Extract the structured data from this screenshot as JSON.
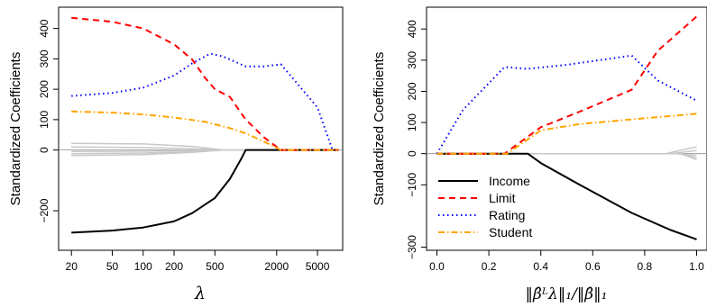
{
  "colors": {
    "income": "#000000",
    "limit": "#FF0000",
    "rating": "#0000FF",
    "student": "#FFA500",
    "other": "#C8C8C8",
    "axis": "#000000",
    "zero_line": "#8C8C8C"
  },
  "chart_data": [
    {
      "type": "line",
      "xlabel": "λ",
      "ylabel": "Standardized Coefficients",
      "x_scale": "log",
      "xlim": [
        15,
        8800
      ],
      "ylim": [
        -330,
        470
      ],
      "x_ticks": [
        20,
        50,
        100,
        200,
        500,
        2000,
        5000
      ],
      "x_tick_labels": [
        "20",
        "50",
        "100",
        "200",
        "500",
        "2000",
        "5000"
      ],
      "y_ticks": [
        -200,
        0,
        100,
        200,
        300,
        400
      ],
      "y_tick_labels": [
        "−200",
        "0",
        "100",
        "200",
        "300",
        "400"
      ],
      "grid": false,
      "legend": "none",
      "series": [
        {
          "name": "Income",
          "style": "solid",
          "x": [
            20,
            50,
            100,
            200,
            300,
            500,
            700,
            900,
            1000,
            8000
          ],
          "y": [
            -272,
            -265,
            -255,
            -235,
            -208,
            -158,
            -95,
            -30,
            0,
            0
          ]
        },
        {
          "name": "Limit",
          "style": "dashed",
          "x": [
            20,
            50,
            100,
            200,
            300,
            400,
            500,
            700,
            1000,
            1500,
            2200,
            8000
          ],
          "y": [
            435,
            422,
            400,
            348,
            298,
            238,
            200,
            175,
            100,
            42,
            0,
            0
          ]
        },
        {
          "name": "Rating",
          "style": "dotted",
          "x": [
            20,
            50,
            100,
            200,
            300,
            450,
            600,
            1000,
            1500,
            2200,
            5000,
            7000
          ],
          "y": [
            178,
            188,
            205,
            245,
            285,
            317,
            308,
            275,
            275,
            282,
            140,
            0
          ]
        },
        {
          "name": "Student",
          "style": "dashdot",
          "x": [
            20,
            50,
            100,
            200,
            400,
            700,
            1000,
            1500,
            2200,
            8000
          ],
          "y": [
            127,
            123,
            117,
            107,
            93,
            72,
            55,
            28,
            0,
            0
          ]
        },
        {
          "name": "",
          "style": "gray",
          "x": [
            20,
            100,
            300,
            600,
            8000
          ],
          "y": [
            22,
            20,
            12,
            0,
            0
          ]
        },
        {
          "name": "",
          "style": "gray",
          "x": [
            20,
            100,
            300,
            600,
            8000
          ],
          "y": [
            10,
            8,
            4,
            0,
            0
          ]
        },
        {
          "name": "",
          "style": "gray",
          "x": [
            20,
            100,
            300,
            600,
            8000
          ],
          "y": [
            -5,
            -4,
            -2,
            0,
            0
          ]
        },
        {
          "name": "",
          "style": "gray",
          "x": [
            20,
            100,
            300,
            600,
            8000
          ],
          "y": [
            -12,
            -10,
            -6,
            0,
            0
          ]
        },
        {
          "name": "",
          "style": "gray",
          "x": [
            20,
            100,
            300,
            600,
            8000
          ],
          "y": [
            -18,
            -15,
            -8,
            0,
            0
          ]
        }
      ]
    },
    {
      "type": "line",
      "xlabel": "‖β̂ᴸλ‖₁/‖β̂‖₁",
      "ylabel": "Standardized Coefficients",
      "x_scale": "linear",
      "xlim": [
        -0.04,
        1.04
      ],
      "ylim": [
        -310,
        470
      ],
      "x_ticks": [
        0.0,
        0.2,
        0.4,
        0.6,
        0.8,
        1.0
      ],
      "x_tick_labels": [
        "0.0",
        "0.2",
        "0.4",
        "0.6",
        "0.8",
        "1.0"
      ],
      "y_ticks": [
        -300,
        -100,
        0,
        100,
        200,
        300,
        400
      ],
      "y_tick_labels": [
        "−300",
        "−100",
        "0",
        "100",
        "200",
        "300",
        "400"
      ],
      "grid": false,
      "legend": "bottom-left",
      "legend_entries": [
        "Income",
        "Limit",
        "Rating",
        "Student"
      ],
      "series": [
        {
          "name": "Income",
          "style": "solid",
          "x": [
            0,
            0.35,
            0.4,
            0.55,
            0.75,
            0.9,
            1.0
          ],
          "y": [
            0,
            0,
            -30,
            -100,
            -190,
            -245,
            -275
          ]
        },
        {
          "name": "Limit",
          "style": "dashed",
          "x": [
            0,
            0.26,
            0.4,
            0.55,
            0.75,
            0.85,
            1.0
          ],
          "y": [
            0,
            0,
            85,
            135,
            205,
            330,
            440
          ]
        },
        {
          "name": "Rating",
          "style": "dotted",
          "x": [
            0,
            0.1,
            0.26,
            0.35,
            0.5,
            0.75,
            0.85,
            1.0
          ],
          "y": [
            0,
            140,
            278,
            272,
            285,
            315,
            235,
            170
          ]
        },
        {
          "name": "Student",
          "style": "dashdot",
          "x": [
            0,
            0.27,
            0.4,
            0.55,
            0.75,
            1.0
          ],
          "y": [
            0,
            0,
            75,
            95,
            110,
            128
          ]
        },
        {
          "name": "",
          "style": "gray",
          "x": [
            0,
            0.88,
            1.0
          ],
          "y": [
            0,
            0,
            22
          ]
        },
        {
          "name": "",
          "style": "gray",
          "x": [
            0,
            0.9,
            1.0
          ],
          "y": [
            0,
            0,
            10
          ]
        },
        {
          "name": "",
          "style": "gray",
          "x": [
            0,
            0.92,
            1.0
          ],
          "y": [
            0,
            0,
            -6
          ]
        },
        {
          "name": "",
          "style": "gray",
          "x": [
            0,
            0.93,
            1.0
          ],
          "y": [
            0,
            0,
            -13
          ]
        },
        {
          "name": "",
          "style": "gray",
          "x": [
            0,
            0.94,
            1.0
          ],
          "y": [
            0,
            0,
            -19
          ]
        }
      ]
    }
  ]
}
